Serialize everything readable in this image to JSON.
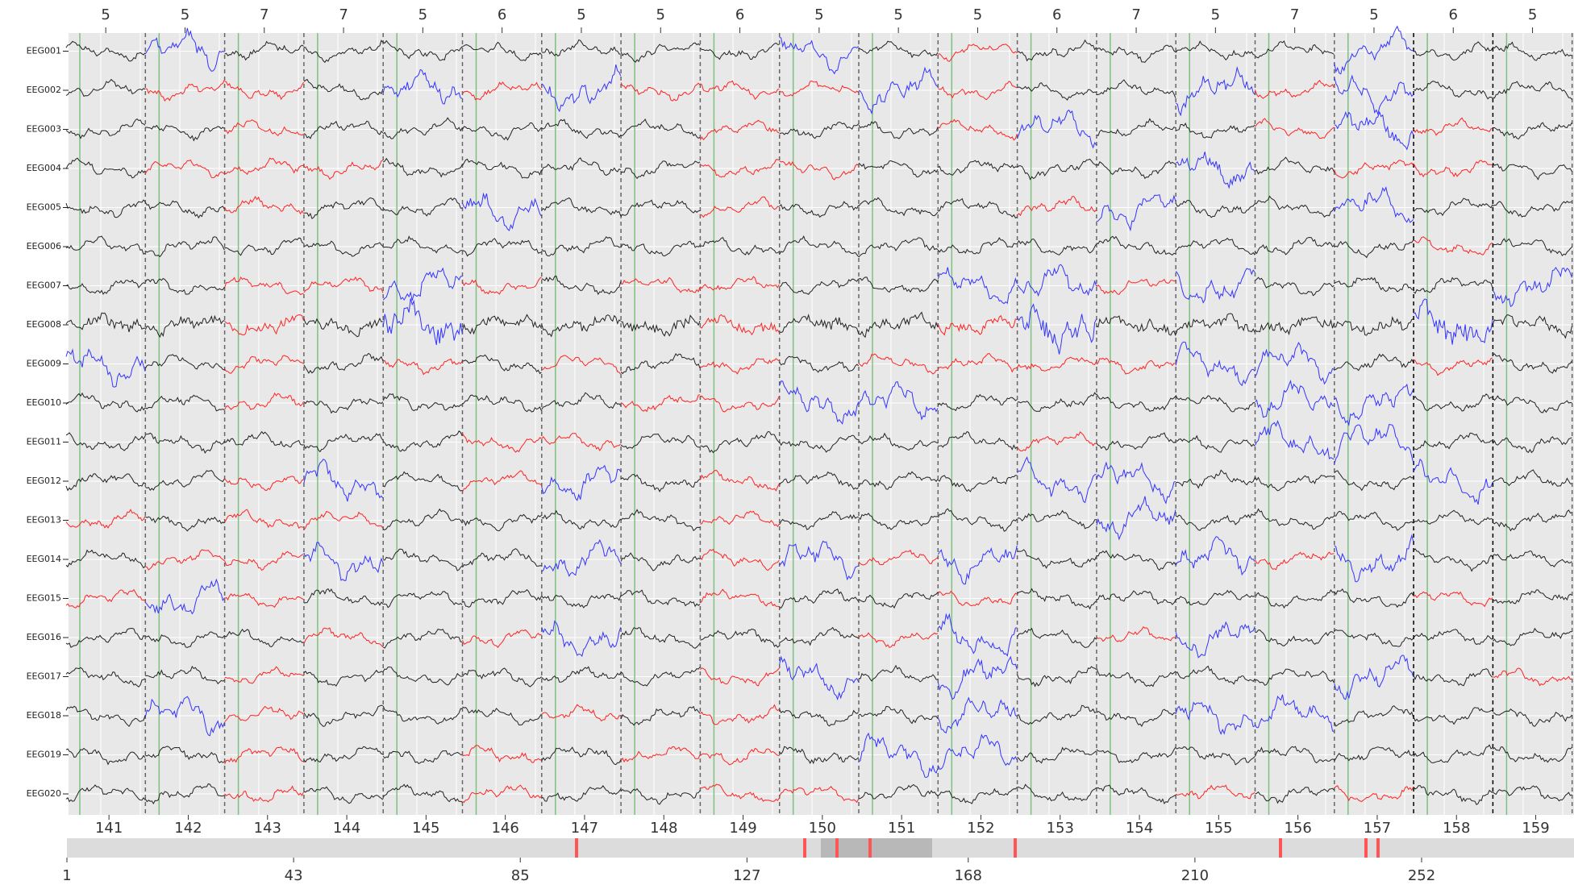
{
  "channels": [
    "EEG001",
    "EEG002",
    "EEG003",
    "EEG004",
    "EEG005",
    "EEG006",
    "EEG007",
    "EEG008",
    "EEG009",
    "EEG010",
    "EEG011",
    "EEG012",
    "EEG013",
    "EEG014",
    "EEG015",
    "EEG016",
    "EEG017",
    "EEG018",
    "EEG019",
    "EEG020"
  ],
  "epoch_counts": [
    5,
    5,
    7,
    7,
    5,
    6,
    5,
    5,
    6,
    5,
    5,
    5,
    6,
    7,
    5,
    7,
    5,
    6,
    5
  ],
  "time_ticks": [
    141,
    142,
    143,
    144,
    145,
    146,
    147,
    148,
    149,
    150,
    151,
    152,
    153,
    154,
    155,
    156,
    157,
    158,
    159
  ],
  "scroll_ticks": [
    1,
    43,
    85,
    127,
    168,
    210,
    252
  ]
}
